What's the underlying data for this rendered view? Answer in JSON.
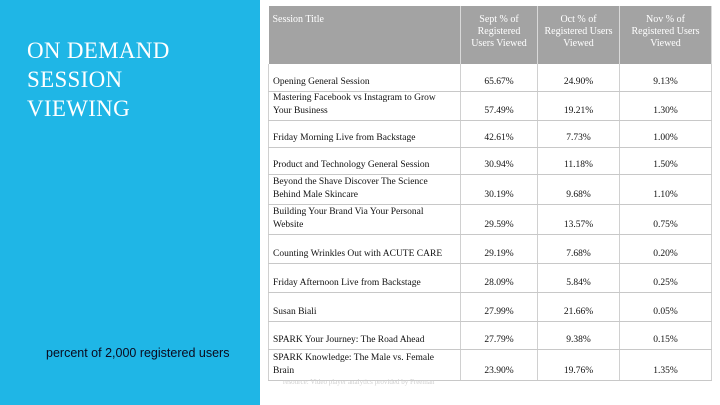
{
  "slide": {
    "title_lines": [
      "ON DEMAND",
      "SESSION",
      "VIEWING"
    ],
    "subtitle": "percent of 2,000 registered users",
    "source_note": "resource: Video player analytics provided by Freeman"
  },
  "table": {
    "headers": [
      "Session Title",
      "Sept % of Registered Users Viewed",
      "Oct % of Registered Users Viewed",
      "Nov % of Registered Users Viewed"
    ],
    "rows": [
      {
        "title": "Opening General Session",
        "sept": "65.67%",
        "oct": "24.90%",
        "nov": "9.13%"
      },
      {
        "title": "Mastering Facebook vs Instagram to Grow Your Business",
        "sept": "57.49%",
        "oct": "19.21%",
        "nov": "1.30%"
      },
      {
        "title": "Friday Morning Live from Backstage",
        "sept": "42.61%",
        "oct": "7.73%",
        "nov": "1.00%"
      },
      {
        "title": "Product and Technology General Session",
        "sept": "30.94%",
        "oct": "11.18%",
        "nov": "1.50%"
      },
      {
        "title": "Beyond the Shave Discover The Science Behind Male Skincare",
        "sept": "30.19%",
        "oct": "9.68%",
        "nov": "1.10%"
      },
      {
        "title": "Building Your Brand Via Your Personal Website",
        "sept": "29.59%",
        "oct": "13.57%",
        "nov": "0.75%"
      },
      {
        "title": "Counting Wrinkles Out with ACUTE CARE",
        "sept": "29.19%",
        "oct": "7.68%",
        "nov": "0.20%"
      },
      {
        "title": "Friday Afternoon Live from Backstage",
        "sept": "28.09%",
        "oct": "5.84%",
        "nov": "0.25%"
      },
      {
        "title": "Susan Biali",
        "sept": "27.99%",
        "oct": "21.66%",
        "nov": "0.05%"
      },
      {
        "title": "SPARK Your Journey: The Road Ahead",
        "sept": "27.79%",
        "oct": "9.38%",
        "nov": "0.15%"
      },
      {
        "title": "SPARK Knowledge: The Male vs. Female Brain",
        "sept": "23.90%",
        "oct": "19.76%",
        "nov": "1.35%"
      }
    ]
  },
  "colors": {
    "panel": "#1fb6e6",
    "header": "#a3a3a3"
  }
}
